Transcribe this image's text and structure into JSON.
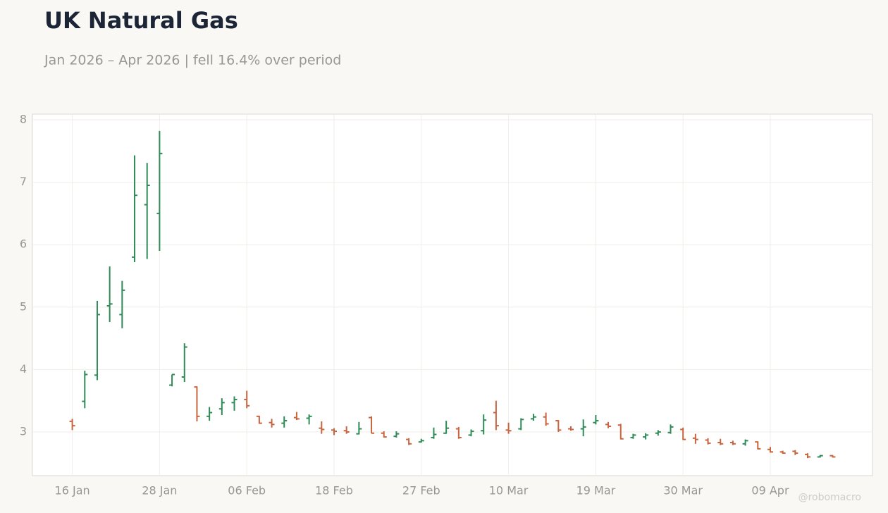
{
  "chart_data": {
    "type": "ohlc",
    "title": "UK Natural Gas",
    "subtitle": "Jan 2026 – Apr 2026 | fell 16.4% over period",
    "watermark": "@robomacro",
    "categories": [
      "16 Jan",
      null,
      null,
      null,
      null,
      null,
      null,
      "28 Jan",
      null,
      null,
      null,
      null,
      null,
      null,
      "06 Feb",
      null,
      null,
      null,
      null,
      null,
      null,
      "18 Feb",
      null,
      null,
      null,
      null,
      null,
      null,
      "27 Feb",
      null,
      null,
      null,
      null,
      null,
      null,
      "10 Mar",
      null,
      null,
      null,
      null,
      null,
      null,
      "19 Mar",
      null,
      null,
      null,
      null,
      null,
      null,
      "30 Mar",
      null,
      null,
      null,
      null,
      null,
      null,
      "09 Apr",
      null,
      null,
      null,
      null,
      null
    ],
    "open": [
      3.17,
      3.49,
      3.91,
      5.02,
      4.88,
      5.8,
      6.64,
      6.5,
      3.75,
      3.88,
      3.72,
      3.25,
      3.37,
      3.47,
      3.52,
      3.25,
      3.15,
      3.14,
      3.23,
      3.22,
      3.06,
      3.03,
      3.02,
      2.97,
      3.23,
      2.98,
      2.93,
      2.88,
      2.84,
      2.91,
      2.98,
      3.05,
      2.95,
      3.02,
      3.31,
      3.03,
      3.05,
      3.21,
      3.24,
      3.18,
      3.05,
      3.05,
      3.15,
      3.12,
      3.11,
      2.91,
      2.92,
      2.98,
      2.99,
      3.04,
      2.9,
      2.87,
      2.83,
      2.83,
      2.81,
      2.84,
      2.72,
      2.68,
      2.69,
      2.64,
      2.6,
      2.62
    ],
    "high": [
      3.21,
      3.98,
      5.1,
      5.65,
      5.42,
      7.43,
      7.31,
      7.82,
      3.92,
      4.42,
      3.73,
      3.4,
      3.54,
      3.57,
      3.66,
      3.26,
      3.21,
      3.25,
      3.32,
      3.28,
      3.17,
      3.06,
      3.09,
      3.16,
      3.25,
      3.01,
      3.01,
      2.9,
      2.89,
      3.07,
      3.18,
      3.08,
      3.04,
      3.28,
      3.5,
      3.15,
      3.22,
      3.29,
      3.31,
      3.19,
      3.09,
      3.2,
      3.27,
      3.16,
      3.13,
      2.97,
      2.98,
      3.03,
      3.12,
      3.07,
      2.97,
      2.9,
      2.89,
      2.86,
      2.88,
      2.85,
      2.76,
      2.7,
      2.71,
      2.66,
      2.63,
      2.63
    ],
    "low": [
      3.03,
      3.38,
      3.83,
      4.76,
      4.66,
      5.72,
      5.77,
      5.9,
      3.73,
      3.8,
      3.17,
      3.18,
      3.27,
      3.34,
      3.38,
      3.13,
      3.07,
      3.07,
      3.19,
      3.12,
      2.97,
      2.95,
      2.97,
      2.96,
      2.98,
      2.91,
      2.91,
      2.79,
      2.83,
      2.89,
      2.97,
      2.89,
      2.93,
      2.96,
      3.03,
      2.97,
      3.03,
      3.18,
      3.1,
      3.0,
      3.02,
      2.93,
      3.12,
      3.06,
      2.88,
      2.89,
      2.88,
      2.94,
      2.97,
      2.87,
      2.81,
      2.8,
      2.79,
      2.79,
      2.78,
      2.72,
      2.67,
      2.65,
      2.63,
      2.58,
      2.59,
      2.59
    ],
    "close": [
      3.1,
      3.92,
      4.88,
      5.05,
      5.27,
      6.79,
      6.95,
      7.46,
      3.92,
      4.36,
      3.25,
      3.31,
      3.47,
      3.52,
      3.42,
      3.14,
      3.12,
      3.18,
      3.21,
      3.25,
      3.04,
      3.01,
      3.0,
      3.05,
      2.98,
      2.92,
      2.97,
      2.81,
      2.86,
      2.96,
      3.06,
      2.91,
      3.01,
      3.19,
      3.1,
      3.02,
      3.2,
      3.24,
      3.13,
      3.03,
      3.04,
      3.08,
      3.18,
      3.09,
      2.89,
      2.95,
      2.95,
      3.0,
      3.08,
      2.88,
      2.88,
      2.82,
      2.81,
      2.81,
      2.86,
      2.73,
      2.68,
      2.66,
      2.66,
      2.6,
      2.62,
      2.6
    ],
    "up_color": "#2e8b57",
    "down_color": "#c8643e",
    "ylim": [
      2.3,
      8.09
    ],
    "yticks": [
      3,
      4,
      5,
      6,
      7,
      8
    ],
    "grid": true
  }
}
